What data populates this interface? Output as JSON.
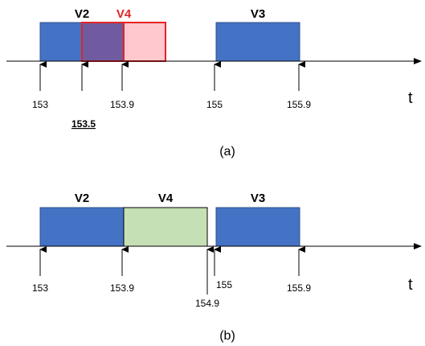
{
  "panel_a": {
    "caption": "(a)",
    "axis_label": "t",
    "bars": [
      {
        "name": "V2",
        "color": "#4472C4"
      },
      {
        "name": "V4",
        "color": "#FFC7CE",
        "label_color": "#E32424"
      },
      {
        "name": "V3",
        "color": "#4472C4"
      }
    ],
    "ticks": [
      "153",
      "153.5",
      "153.9",
      "155",
      "155.9"
    ]
  },
  "panel_b": {
    "caption": "(b)",
    "axis_label": "t",
    "bars": [
      {
        "name": "V2",
        "color": "#4472C4"
      },
      {
        "name": "V4",
        "color": "#C5E0B4"
      },
      {
        "name": "V3",
        "color": "#4472C4"
      }
    ],
    "ticks": [
      "153",
      "153.9",
      "154.9",
      "155",
      "155.9"
    ]
  },
  "colors": {
    "overlap": "#705BA0",
    "red_border": "#E32424"
  }
}
